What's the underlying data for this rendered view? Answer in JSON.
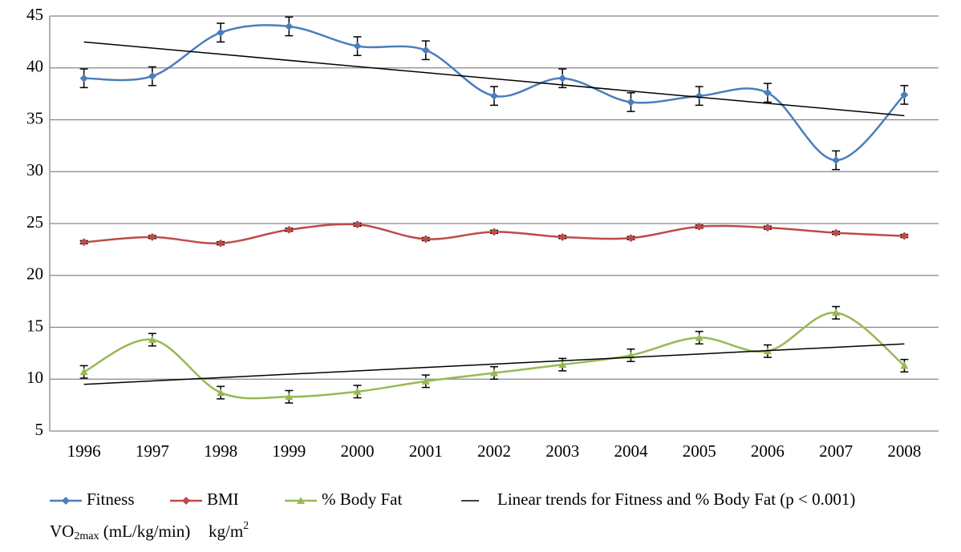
{
  "chart_data": {
    "type": "line",
    "categories": [
      "1996",
      "1997",
      "1998",
      "1999",
      "2000",
      "2001",
      "2002",
      "2003",
      "2004",
      "2005",
      "2006",
      "2007",
      "2008"
    ],
    "ylim": [
      5,
      45
    ],
    "yticks": [
      5,
      10,
      15,
      20,
      25,
      30,
      35,
      40,
      45
    ],
    "grid": true,
    "smooth": true,
    "legend": "bottom",
    "series": [
      {
        "name": "Fitness",
        "color": "#4a7ebb",
        "marker": "diamond",
        "values": [
          39.0,
          39.2,
          43.4,
          44.0,
          42.1,
          41.7,
          37.3,
          39.0,
          36.7,
          37.3,
          37.6,
          31.1,
          37.4
        ],
        "errors": [
          0.9,
          0.9,
          0.9,
          0.9,
          0.9,
          0.9,
          0.9,
          0.9,
          0.9,
          0.9,
          0.9,
          0.9,
          0.9
        ]
      },
      {
        "name": "BMI",
        "color": "#be4b48",
        "marker": "diamond",
        "values": [
          23.2,
          23.7,
          23.1,
          24.4,
          24.9,
          23.5,
          24.2,
          23.7,
          23.6,
          24.7,
          24.6,
          24.1,
          23.8
        ],
        "errors": [
          0.15,
          0.15,
          0.15,
          0.15,
          0.15,
          0.15,
          0.15,
          0.15,
          0.15,
          0.15,
          0.15,
          0.15,
          0.15
        ]
      },
      {
        "name": "% Body Fat",
        "color": "#98b954",
        "marker": "triangle",
        "values": [
          10.7,
          13.8,
          8.7,
          8.3,
          8.8,
          9.8,
          10.6,
          11.4,
          12.3,
          14.0,
          12.7,
          16.4,
          11.3
        ],
        "errors": [
          0.6,
          0.6,
          0.6,
          0.6,
          0.6,
          0.6,
          0.6,
          0.6,
          0.6,
          0.6,
          0.6,
          0.6,
          0.6
        ]
      }
    ],
    "trend_lines": {
      "name": "Linear trends for Fitness and % Body Fat (p < 0.001)",
      "color": "#000000",
      "lines": [
        {
          "start": 42.5,
          "end": 35.4
        },
        {
          "start": 9.5,
          "end": 13.4
        }
      ]
    },
    "units": [
      {
        "base": "VO",
        "sub": "2max",
        "rest": " (mL/kg/min)"
      },
      {
        "base": "kg/m",
        "sup": "2"
      }
    ]
  }
}
